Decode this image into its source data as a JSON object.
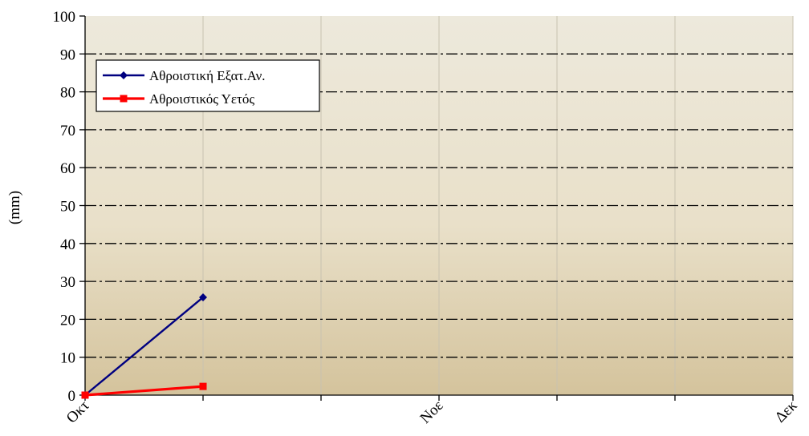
{
  "chart_data": {
    "type": "line",
    "xlabel": "",
    "ylabel": "(mm)",
    "ylim": [
      0,
      100
    ],
    "y_ticks": [
      "0",
      "10",
      "20",
      "30",
      "40",
      "50",
      "60",
      "70",
      "80",
      "90",
      "100"
    ],
    "x_ticks": [
      {
        "label": "Οκτ",
        "pos": 0
      },
      {
        "label": "Νοε",
        "pos": 3
      },
      {
        "label": "Δεκ",
        "pos": 6
      }
    ],
    "x_range": [
      0,
      6
    ],
    "grid": true,
    "legend_position": "top-left",
    "series": [
      {
        "name": "Αθροιστική Εξατ.Αν.",
        "color": "#000080",
        "marker": "diamond",
        "x": [
          0,
          1
        ],
        "y": [
          0,
          25.8
        ]
      },
      {
        "name": "Αθροιστικός Υετός",
        "color": "#ff0000",
        "marker": "square",
        "x": [
          0,
          1
        ],
        "y": [
          0,
          2.3
        ]
      }
    ],
    "colors": {
      "plot_bg_top": "#ede9dc",
      "plot_bg_bottom": "#d4c39c",
      "grid": "#000000"
    }
  }
}
